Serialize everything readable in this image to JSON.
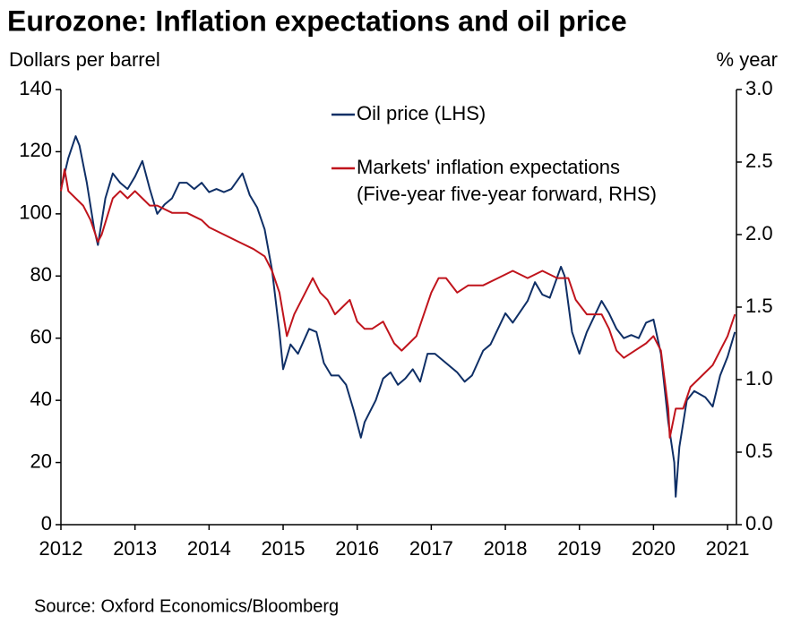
{
  "chart_data": {
    "type": "line",
    "title": "Eurozone: Inflation expectations and oil price",
    "y_label": "Dollars per barrel",
    "y2_label": "% year",
    "source": "Source: Oxford Economics/Bloomberg",
    "xlim": [
      2012,
      2021.12
    ],
    "xticks": [
      2012,
      2013,
      2014,
      2015,
      2016,
      2017,
      2018,
      2019,
      2020,
      2021
    ],
    "ylim": [
      0,
      140
    ],
    "yticks": [
      0,
      20,
      40,
      60,
      80,
      100,
      120,
      140
    ],
    "y2lim": [
      0,
      3
    ],
    "y2ticks": [
      {
        "value": 0,
        "label": "0.0"
      },
      0.5,
      {
        "value": 1,
        "label": "1.0"
      },
      1.5,
      {
        "value": 2,
        "label": "2.0"
      },
      2.5,
      {
        "value": 3,
        "label": "3.0"
      }
    ],
    "grid": false,
    "legend": "top",
    "series": [
      {
        "name": "Oil price (LHS)",
        "color": "#0f2f66",
        "x": [
          2012.0,
          2012.1,
          2012.2,
          2012.25,
          2012.35,
          2012.45,
          2012.5,
          2012.6,
          2012.7,
          2012.8,
          2012.9,
          2013.0,
          2013.1,
          2013.2,
          2013.3,
          2013.4,
          2013.5,
          2013.6,
          2013.7,
          2013.8,
          2013.9,
          2014.0,
          2014.1,
          2014.2,
          2014.3,
          2014.45,
          2014.55,
          2014.65,
          2014.75,
          2014.85,
          2014.95,
          2015.0,
          2015.1,
          2015.2,
          2015.35,
          2015.45,
          2015.55,
          2015.65,
          2015.75,
          2015.85,
          2015.95,
          2016.05,
          2016.1,
          2016.25,
          2016.35,
          2016.45,
          2016.55,
          2016.65,
          2016.75,
          2016.85,
          2016.95,
          2017.05,
          2017.2,
          2017.35,
          2017.45,
          2017.55,
          2017.7,
          2017.8,
          2017.9,
          2018.0,
          2018.1,
          2018.3,
          2018.4,
          2018.5,
          2018.6,
          2018.75,
          2018.8,
          2018.9,
          2019.0,
          2019.1,
          2019.3,
          2019.4,
          2019.5,
          2019.6,
          2019.7,
          2019.8,
          2019.9,
          2020.0,
          2020.1,
          2020.2,
          2020.28,
          2020.3,
          2020.35,
          2020.45,
          2020.55,
          2020.7,
          2020.8,
          2020.9,
          2021.0,
          2021.1
        ],
        "values": [
          108,
          118,
          125,
          122,
          110,
          95,
          90,
          105,
          113,
          110,
          108,
          112,
          117,
          108,
          100,
          103,
          105,
          110,
          110,
          108,
          110,
          107,
          108,
          107,
          108,
          113,
          106,
          102,
          95,
          82,
          62,
          50,
          58,
          55,
          63,
          62,
          52,
          48,
          48,
          45,
          37,
          28,
          33,
          40,
          47,
          49,
          45,
          47,
          50,
          46,
          55,
          55,
          52,
          49,
          46,
          48,
          56,
          58,
          63,
          68,
          65,
          72,
          78,
          74,
          73,
          83,
          80,
          62,
          55,
          62,
          72,
          68,
          63,
          60,
          61,
          60,
          65,
          66,
          55,
          33,
          20,
          9,
          25,
          40,
          43,
          41,
          38,
          48,
          54,
          62
        ]
      },
      {
        "name": "Markets' inflation expectations (Five-year five-year forward, RHS)",
        "color": "#c0141c",
        "axis": "y2",
        "x": [
          2012.0,
          2012.05,
          2012.1,
          2012.2,
          2012.3,
          2012.4,
          2012.5,
          2012.55,
          2012.7,
          2012.8,
          2012.9,
          2013.0,
          2013.1,
          2013.2,
          2013.3,
          2013.5,
          2013.7,
          2013.9,
          2014.0,
          2014.2,
          2014.4,
          2014.6,
          2014.75,
          2014.85,
          2014.95,
          2015.05,
          2015.15,
          2015.3,
          2015.4,
          2015.5,
          2015.6,
          2015.7,
          2015.8,
          2015.9,
          2016.0,
          2016.1,
          2016.2,
          2016.35,
          2016.5,
          2016.6,
          2016.7,
          2016.8,
          2016.9,
          2017.0,
          2017.1,
          2017.2,
          2017.35,
          2017.5,
          2017.7,
          2017.9,
          2018.1,
          2018.3,
          2018.5,
          2018.7,
          2018.85,
          2018.95,
          2019.1,
          2019.3,
          2019.4,
          2019.5,
          2019.6,
          2019.75,
          2019.9,
          2020.0,
          2020.1,
          2020.2,
          2020.22,
          2020.3,
          2020.4,
          2020.5,
          2020.6,
          2020.7,
          2020.8,
          2020.9,
          2021.0,
          2021.1
        ],
        "values": [
          2.3,
          2.45,
          2.3,
          2.25,
          2.2,
          2.1,
          1.95,
          2.0,
          2.25,
          2.3,
          2.25,
          2.3,
          2.25,
          2.2,
          2.2,
          2.15,
          2.15,
          2.1,
          2.05,
          2.0,
          1.95,
          1.9,
          1.85,
          1.75,
          1.6,
          1.3,
          1.45,
          1.6,
          1.7,
          1.6,
          1.55,
          1.45,
          1.5,
          1.55,
          1.4,
          1.35,
          1.35,
          1.4,
          1.25,
          1.2,
          1.25,
          1.3,
          1.45,
          1.6,
          1.7,
          1.7,
          1.6,
          1.65,
          1.65,
          1.7,
          1.75,
          1.7,
          1.75,
          1.7,
          1.7,
          1.55,
          1.45,
          1.45,
          1.35,
          1.2,
          1.15,
          1.2,
          1.25,
          1.3,
          1.2,
          0.8,
          0.6,
          0.8,
          0.8,
          0.95,
          1.0,
          1.05,
          1.1,
          1.2,
          1.3,
          1.45
        ]
      }
    ]
  }
}
